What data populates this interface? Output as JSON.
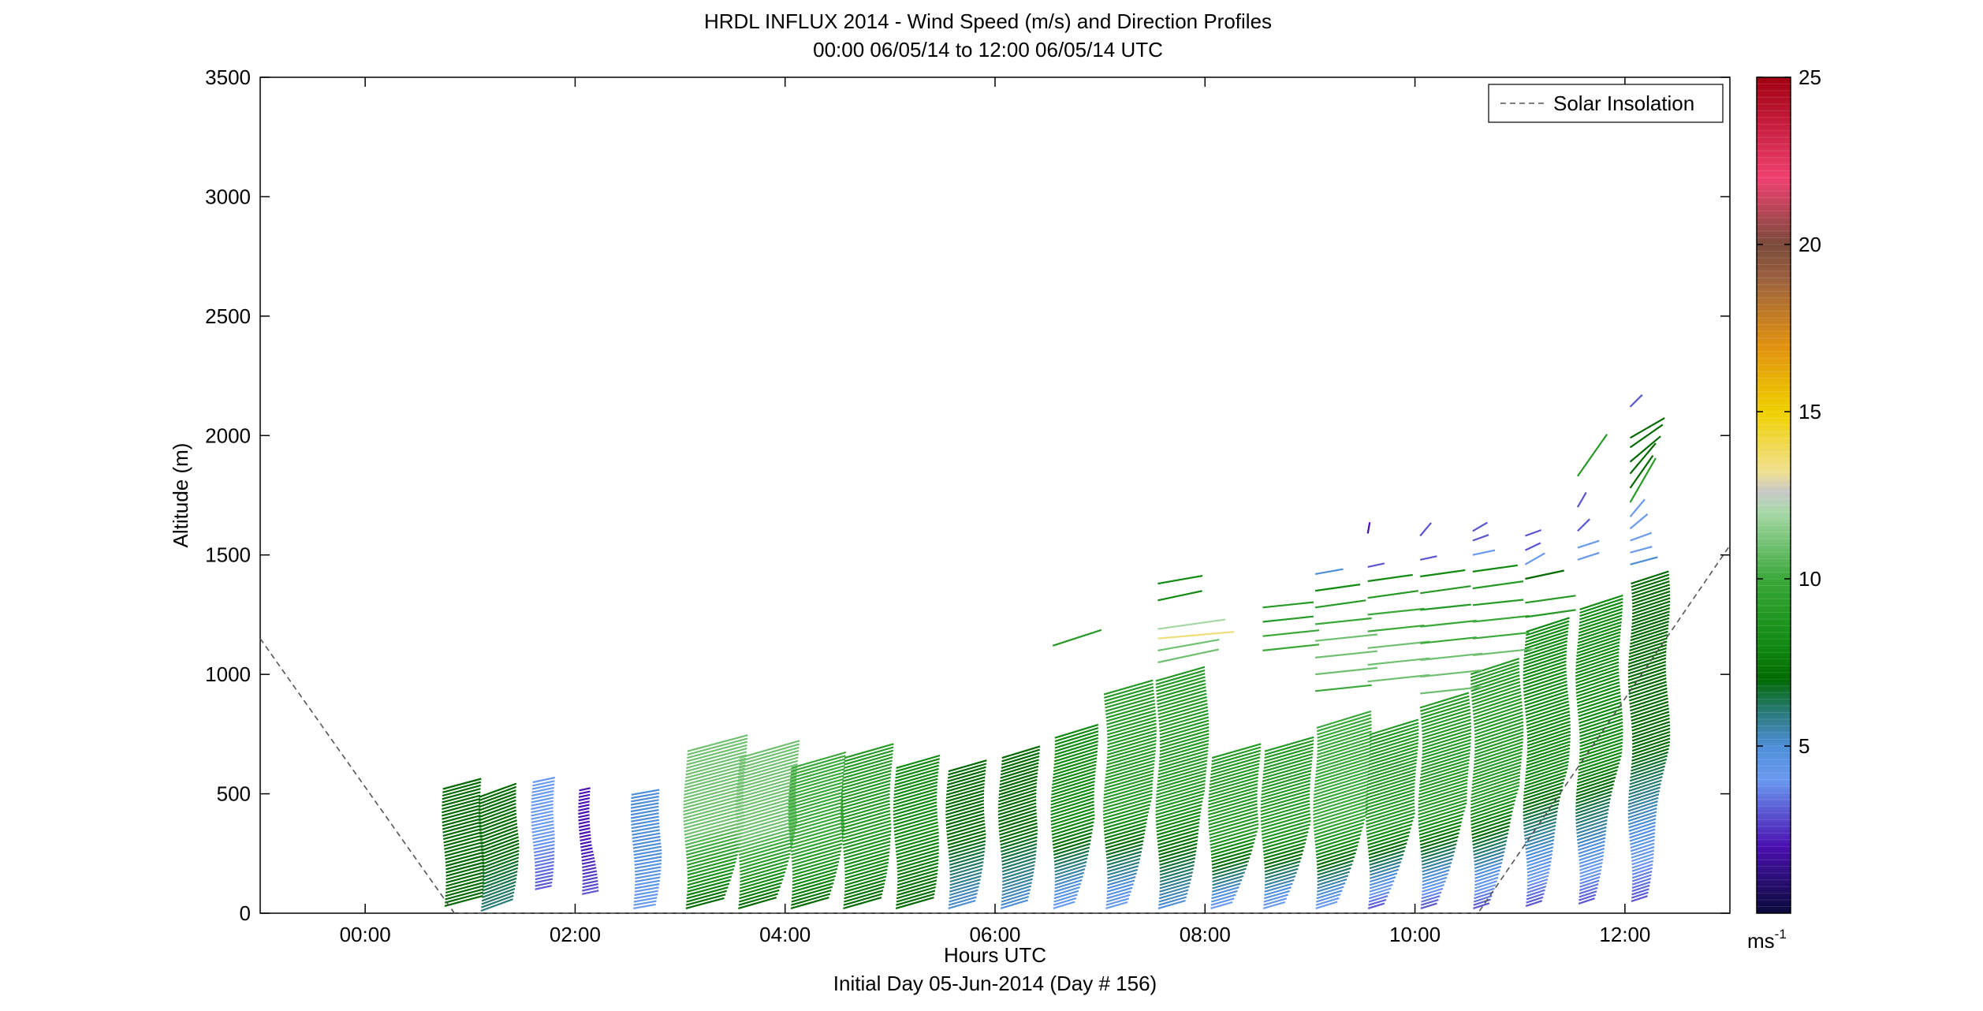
{
  "chart_data": {
    "type": "wind-barb-profile",
    "title": "HRDL INFLUX 2014 - Wind Speed (m/s) and Direction Profiles",
    "subtitle": "00:00 06/05/14 to 12:00 06/05/14  UTC",
    "xlabel": "Hours UTC",
    "xlabel2": "Initial Day 05-Jun-2014 (Day # 156)",
    "ylabel": "Altitude (m)",
    "xlim": [
      -1.0,
      13.0
    ],
    "ylim": [
      0,
      3500
    ],
    "x_ticks": [
      0,
      2,
      4,
      6,
      8,
      10,
      12
    ],
    "x_tick_labels": [
      "00:00",
      "02:00",
      "04:00",
      "06:00",
      "08:00",
      "10:00",
      "12:00"
    ],
    "y_ticks": [
      0,
      500,
      1000,
      1500,
      2000,
      2500,
      3000,
      3500
    ],
    "y_tick_labels": [
      "0",
      "500",
      "1000",
      "1500",
      "2000",
      "2500",
      "3000",
      "3500"
    ],
    "legend": {
      "label": "Solar Insolation",
      "placement": "top-right"
    },
    "colorbar": {
      "range": [
        0,
        25
      ],
      "ticks": [
        5,
        10,
        15,
        20,
        25
      ],
      "tick_labels": [
        "5",
        "10",
        "15",
        "20",
        "25"
      ],
      "unit": "ms",
      "unit_exp": "-1",
      "stops": [
        {
          "v": 0,
          "c": "#0a0a3a"
        },
        {
          "v": 2,
          "c": "#4a10b0"
        },
        {
          "v": 4,
          "c": "#6a9af0"
        },
        {
          "v": 5,
          "c": "#4e8ed8"
        },
        {
          "v": 6,
          "c": "#2a7a7a"
        },
        {
          "v": 7,
          "c": "#006a00"
        },
        {
          "v": 8,
          "c": "#118a11"
        },
        {
          "v": 10,
          "c": "#3aa83a"
        },
        {
          "v": 12,
          "c": "#a8d8a8"
        },
        {
          "v": 12.6,
          "c": "#c8c8c8"
        },
        {
          "v": 13.2,
          "c": "#f0e090"
        },
        {
          "v": 15,
          "c": "#f0d000"
        },
        {
          "v": 17,
          "c": "#e09010"
        },
        {
          "v": 19,
          "c": "#9a6040"
        },
        {
          "v": 20,
          "c": "#7a4a3a"
        },
        {
          "v": 22,
          "c": "#f04070"
        },
        {
          "v": 25,
          "c": "#a00010"
        }
      ]
    },
    "solar_insolation": {
      "x": [
        -1.0,
        0.85,
        10.6,
        13.0
      ],
      "y": [
        1150,
        0,
        0,
        1540
      ]
    },
    "profiles": [
      {
        "t": 0.75,
        "base": 30,
        "top": 520,
        "speed": [
          7,
          7
        ],
        "dir": 75
      },
      {
        "t": 1.1,
        "base": 10,
        "top": 490,
        "speed": [
          6,
          7
        ],
        "dir": 70
      },
      {
        "t": 1.6,
        "base": 100,
        "top": 560,
        "speed": [
          3,
          4
        ],
        "dir": 78
      },
      {
        "t": 2.05,
        "base": 80,
        "top": 520,
        "speed": [
          3,
          2
        ],
        "dir": 78
      },
      {
        "t": 2.55,
        "base": 20,
        "top": 500,
        "speed": [
          4,
          5
        ],
        "dir": 80
      },
      {
        "t": 3.05,
        "base": 20,
        "top": 690,
        "speed": [
          7,
          11
        ],
        "dir": 75
      },
      {
        "t": 3.55,
        "base": 20,
        "top": 660,
        "speed": [
          7,
          11
        ],
        "dir": 74
      },
      {
        "t": 4.05,
        "base": 20,
        "top": 620,
        "speed": [
          7,
          10
        ],
        "dir": 74
      },
      {
        "t": 4.55,
        "base": 20,
        "top": 650,
        "speed": [
          7,
          9
        ],
        "dir": 74
      },
      {
        "t": 5.05,
        "base": 20,
        "top": 620,
        "speed": [
          7,
          8
        ],
        "dir": 74
      },
      {
        "t": 5.55,
        "base": 20,
        "top": 600,
        "speed": [
          5,
          7
        ],
        "dir": 74
      },
      {
        "t": 6.05,
        "base": 20,
        "top": 650,
        "speed": [
          5,
          7
        ],
        "dir": 73
      },
      {
        "t": 6.55,
        "base": 20,
        "top": 740,
        "speed": [
          4,
          8
        ],
        "dir": 73
      },
      {
        "t": 7.05,
        "base": 20,
        "top": 920,
        "speed": [
          4,
          9
        ],
        "dir": 74
      },
      {
        "t": 7.55,
        "base": 20,
        "top": 980,
        "speed": [
          5,
          9
        ],
        "dir": 74
      },
      {
        "t": 8.05,
        "base": 20,
        "top": 650,
        "speed": [
          4,
          9
        ],
        "dir": 74
      },
      {
        "t": 8.55,
        "base": 20,
        "top": 690,
        "speed": [
          4,
          9
        ],
        "dir": 74
      },
      {
        "t": 9.05,
        "base": 20,
        "top": 780,
        "speed": [
          4,
          10
        ],
        "dir": 73
      },
      {
        "t": 9.55,
        "base": 20,
        "top": 750,
        "speed": [
          3,
          9
        ],
        "dir": 73
      },
      {
        "t": 10.05,
        "base": 20,
        "top": 860,
        "speed": [
          3,
          9
        ],
        "dir": 73
      },
      {
        "t": 10.55,
        "base": 20,
        "top": 1000,
        "speed": [
          3,
          9
        ],
        "dir": 72
      },
      {
        "t": 11.05,
        "base": 30,
        "top": 1180,
        "speed": [
          3,
          8
        ],
        "dir": 72
      },
      {
        "t": 11.55,
        "base": 40,
        "top": 1280,
        "speed": [
          3,
          8
        ],
        "dir": 72
      },
      {
        "t": 12.05,
        "base": 50,
        "top": 1380,
        "speed": [
          3,
          7
        ],
        "dir": 72
      }
    ],
    "upper_segments": [
      {
        "t": 6.55,
        "z": 1120,
        "speed": 9,
        "dir": 72
      },
      {
        "t": 7.55,
        "z": 1380,
        "speed": 8,
        "dir": 80
      },
      {
        "t": 7.55,
        "z": 1310,
        "speed": 8,
        "dir": 78
      },
      {
        "t": 7.55,
        "z": 1190,
        "speed": 12,
        "dir": 82
      },
      {
        "t": 7.55,
        "z": 1150,
        "speed": 13.5,
        "dir": 85
      },
      {
        "t": 7.55,
        "z": 1100,
        "speed": 11,
        "dir": 80
      },
      {
        "t": 7.55,
        "z": 1050,
        "speed": 11,
        "dir": 78
      },
      {
        "t": 8.55,
        "z": 1280,
        "speed": 9,
        "dir": 84
      },
      {
        "t": 8.55,
        "z": 1220,
        "speed": 9,
        "dir": 84
      },
      {
        "t": 8.55,
        "z": 1160,
        "speed": 10,
        "dir": 84
      },
      {
        "t": 8.55,
        "z": 1100,
        "speed": 10,
        "dir": 84
      },
      {
        "t": 9.05,
        "z": 1420,
        "speed": 5,
        "dir": 80
      },
      {
        "t": 9.05,
        "z": 1350,
        "speed": 8,
        "dir": 82
      },
      {
        "t": 9.05,
        "z": 1280,
        "speed": 9,
        "dir": 82
      },
      {
        "t": 9.05,
        "z": 1210,
        "speed": 10,
        "dir": 84
      },
      {
        "t": 9.05,
        "z": 1140,
        "speed": 11,
        "dir": 84
      },
      {
        "t": 9.05,
        "z": 1070,
        "speed": 11,
        "dir": 84
      },
      {
        "t": 9.05,
        "z": 1000,
        "speed": 11,
        "dir": 84
      },
      {
        "t": 9.05,
        "z": 930,
        "speed": 10,
        "dir": 84
      },
      {
        "t": 9.55,
        "z": 1590,
        "speed": 2,
        "dir": 10
      },
      {
        "t": 9.55,
        "z": 1450,
        "speed": 3,
        "dir": 78
      },
      {
        "t": 9.55,
        "z": 1390,
        "speed": 8,
        "dir": 82
      },
      {
        "t": 9.55,
        "z": 1320,
        "speed": 9,
        "dir": 82
      },
      {
        "t": 9.55,
        "z": 1250,
        "speed": 10,
        "dir": 84
      },
      {
        "t": 9.55,
        "z": 1180,
        "speed": 10,
        "dir": 84
      },
      {
        "t": 9.55,
        "z": 1110,
        "speed": 11,
        "dir": 84
      },
      {
        "t": 9.55,
        "z": 1040,
        "speed": 11,
        "dir": 84
      },
      {
        "t": 9.55,
        "z": 970,
        "speed": 11,
        "dir": 84
      },
      {
        "t": 10.05,
        "z": 1580,
        "speed": 3,
        "dir": 40
      },
      {
        "t": 10.05,
        "z": 1480,
        "speed": 3,
        "dir": 78
      },
      {
        "t": 10.05,
        "z": 1410,
        "speed": 8,
        "dir": 82
      },
      {
        "t": 10.05,
        "z": 1340,
        "speed": 9,
        "dir": 82
      },
      {
        "t": 10.05,
        "z": 1270,
        "speed": 9,
        "dir": 84
      },
      {
        "t": 10.05,
        "z": 1200,
        "speed": 10,
        "dir": 84
      },
      {
        "t": 10.05,
        "z": 1130,
        "speed": 10,
        "dir": 84
      },
      {
        "t": 10.05,
        "z": 1060,
        "speed": 11,
        "dir": 84
      },
      {
        "t": 10.05,
        "z": 990,
        "speed": 11,
        "dir": 84
      },
      {
        "t": 10.05,
        "z": 920,
        "speed": 11,
        "dir": 84
      },
      {
        "t": 10.55,
        "z": 1600,
        "speed": 3,
        "dir": 60
      },
      {
        "t": 10.55,
        "z": 1560,
        "speed": 3,
        "dir": 70
      },
      {
        "t": 10.55,
        "z": 1500,
        "speed": 4,
        "dir": 78
      },
      {
        "t": 10.55,
        "z": 1430,
        "speed": 8,
        "dir": 82
      },
      {
        "t": 10.55,
        "z": 1360,
        "speed": 9,
        "dir": 82
      },
      {
        "t": 10.55,
        "z": 1290,
        "speed": 9,
        "dir": 84
      },
      {
        "t": 10.55,
        "z": 1220,
        "speed": 10,
        "dir": 84
      },
      {
        "t": 10.55,
        "z": 1150,
        "speed": 10,
        "dir": 84
      },
      {
        "t": 10.55,
        "z": 1080,
        "speed": 11,
        "dir": 84
      },
      {
        "t": 11.05,
        "z": 1580,
        "speed": 3,
        "dir": 70
      },
      {
        "t": 11.05,
        "z": 1520,
        "speed": 3,
        "dir": 65
      },
      {
        "t": 11.05,
        "z": 1460,
        "speed": 4,
        "dir": 60
      },
      {
        "t": 11.05,
        "z": 1400,
        "speed": 7,
        "dir": 78
      },
      {
        "t": 11.05,
        "z": 1300,
        "speed": 9,
        "dir": 82
      },
      {
        "t": 11.05,
        "z": 1240,
        "speed": 9,
        "dir": 82
      },
      {
        "t": 11.55,
        "z": 1830,
        "speed": 9,
        "dir": 35
      },
      {
        "t": 11.55,
        "z": 1700,
        "speed": 3,
        "dir": 30
      },
      {
        "t": 11.55,
        "z": 1600,
        "speed": 3,
        "dir": 45
      },
      {
        "t": 11.55,
        "z": 1530,
        "speed": 4,
        "dir": 72
      },
      {
        "t": 11.55,
        "z": 1480,
        "speed": 4,
        "dir": 72
      },
      {
        "t": 12.05,
        "z": 2120,
        "speed": 3,
        "dir": 45
      },
      {
        "t": 12.05,
        "z": 1990,
        "speed": 7,
        "dir": 60
      },
      {
        "t": 12.05,
        "z": 1950,
        "speed": 7,
        "dir": 55
      },
      {
        "t": 12.05,
        "z": 1890,
        "speed": 7,
        "dir": 50
      },
      {
        "t": 12.05,
        "z": 1840,
        "speed": 7,
        "dir": 40
      },
      {
        "t": 12.05,
        "z": 1780,
        "speed": 7,
        "dir": 35
      },
      {
        "t": 12.05,
        "z": 1720,
        "speed": 9,
        "dir": 30
      },
      {
        "t": 12.05,
        "z": 1660,
        "speed": 4,
        "dir": 40
      },
      {
        "t": 12.05,
        "z": 1610,
        "speed": 4,
        "dir": 50
      },
      {
        "t": 12.05,
        "z": 1560,
        "speed": 4,
        "dir": 70
      },
      {
        "t": 12.05,
        "z": 1510,
        "speed": 4,
        "dir": 75
      },
      {
        "t": 12.05,
        "z": 1460,
        "speed": 5,
        "dir": 75
      }
    ]
  }
}
